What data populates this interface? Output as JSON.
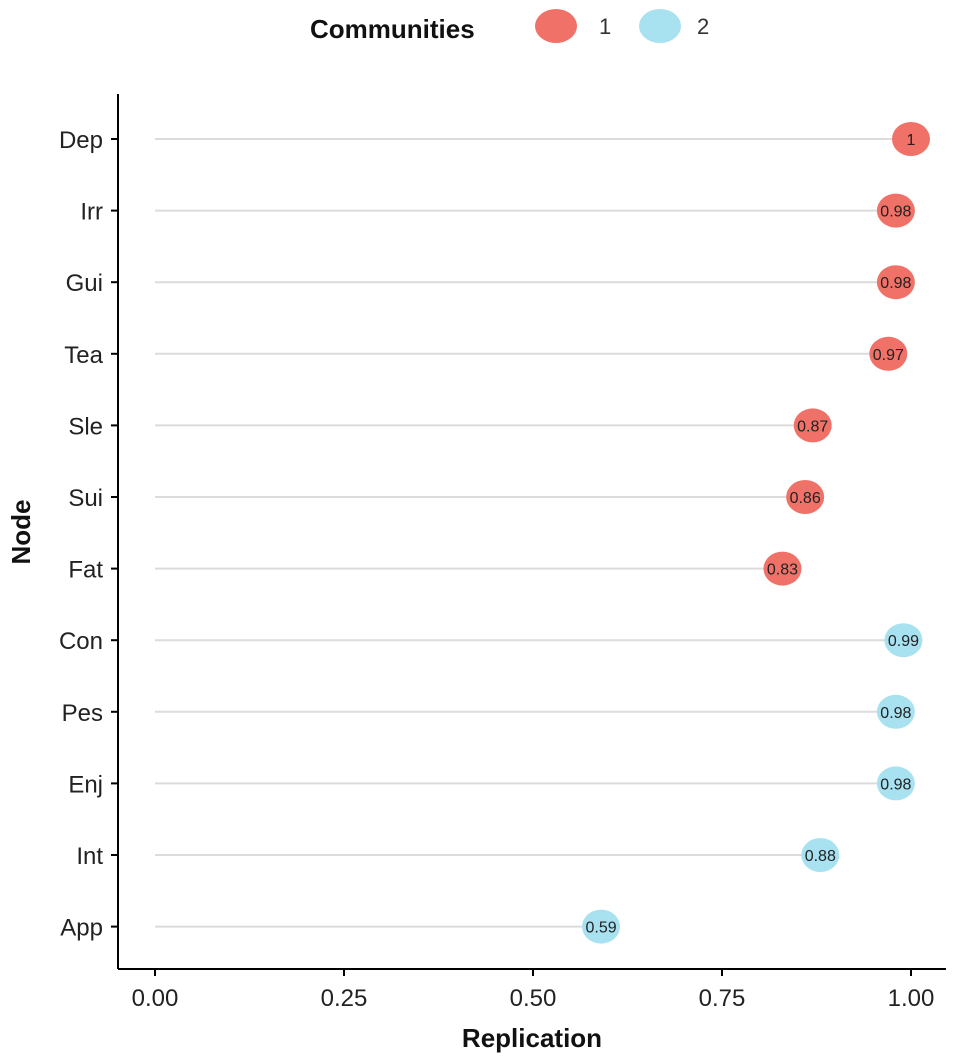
{
  "chart_data": {
    "type": "scatter",
    "xlabel": "Replication",
    "ylabel": "Node",
    "xlim": [
      0,
      1
    ],
    "x_ticks": [
      "0.00",
      "0.25",
      "0.50",
      "0.75",
      "1.00"
    ],
    "x_tick_values": [
      0,
      0.25,
      0.5,
      0.75,
      1.0
    ],
    "grid": "horizontal",
    "legend": {
      "title": "Communities",
      "placement": "top",
      "entries": [
        {
          "label": "1",
          "color": "#F07167"
        },
        {
          "label": "2",
          "color": "#A8E1F0"
        }
      ]
    },
    "points": [
      {
        "node": "Dep",
        "value": 1.0,
        "label": "1",
        "community": "1"
      },
      {
        "node": "Irr",
        "value": 0.98,
        "label": "0.98",
        "community": "1"
      },
      {
        "node": "Gui",
        "value": 0.98,
        "label": "0.98",
        "community": "1"
      },
      {
        "node": "Tea",
        "value": 0.97,
        "label": "0.97",
        "community": "1"
      },
      {
        "node": "Sle",
        "value": 0.87,
        "label": "0.87",
        "community": "1"
      },
      {
        "node": "Sui",
        "value": 0.86,
        "label": "0.86",
        "community": "1"
      },
      {
        "node": "Fat",
        "value": 0.83,
        "label": "0.83",
        "community": "1"
      },
      {
        "node": "Con",
        "value": 0.99,
        "label": "0.99",
        "community": "2"
      },
      {
        "node": "Pes",
        "value": 0.98,
        "label": "0.98",
        "community": "2"
      },
      {
        "node": "Enj",
        "value": 0.98,
        "label": "0.98",
        "community": "2"
      },
      {
        "node": "Int",
        "value": 0.88,
        "label": "0.88",
        "community": "2"
      },
      {
        "node": "App",
        "value": 0.59,
        "label": "0.59",
        "community": "2"
      }
    ]
  }
}
